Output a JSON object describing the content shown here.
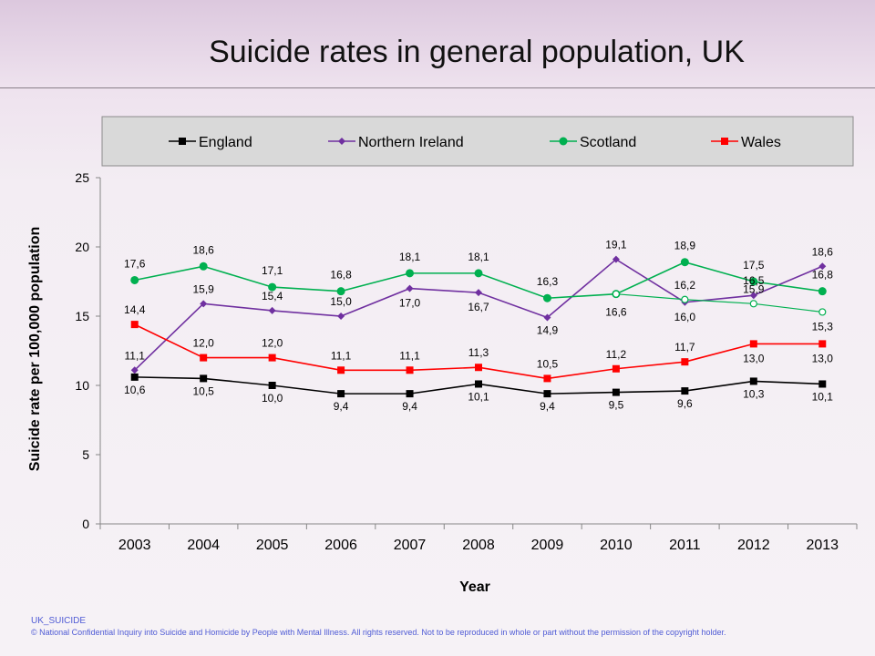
{
  "title": "Suicide rates in general population, UK",
  "footer": {
    "code": "UK_SUICIDE",
    "copyright": "© National Confidential Inquiry into Suicide and Homicide by People with Mental Illness. All rights reserved. Not to be reproduced in whole or part without the permission of the copyright holder."
  },
  "chart_data": {
    "type": "line",
    "xlabel": "Year",
    "ylabel": "Suicide rate per 100,000 population",
    "x": [
      "2003",
      "2004",
      "2005",
      "2006",
      "2007",
      "2008",
      "2009",
      "2010",
      "2011",
      "2012",
      "2013"
    ],
    "yticks": [
      "0",
      "5",
      "10",
      "15",
      "20",
      "25"
    ],
    "ylim": [
      0,
      25
    ],
    "grid": false,
    "legend_position": "top",
    "series": [
      {
        "name": "England",
        "color": "#000000",
        "marker": "square",
        "values": [
          10.6,
          10.5,
          10.0,
          9.4,
          9.4,
          10.1,
          9.4,
          9.5,
          9.6,
          10.3,
          10.1
        ],
        "labels": [
          "10,6",
          "10,5",
          "10,0",
          "9,4",
          "9,4",
          "10,1",
          "9,4",
          "9,5",
          "9,6",
          "10,3",
          "10,1"
        ]
      },
      {
        "name": "Northern Ireland",
        "color": "#7030a0",
        "marker": "diamond",
        "values": [
          11.1,
          15.9,
          15.4,
          15.0,
          17.0,
          16.7,
          14.9,
          19.1,
          16.0,
          16.5,
          18.6
        ],
        "labels": [
          "11,1",
          "15,9",
          "15,4",
          "15,0",
          "17,0",
          "16,7",
          "14,9",
          "19,1",
          "16,0",
          "16,5",
          "18,6"
        ]
      },
      {
        "name": "Scotland",
        "color": "#00b050",
        "marker": "circle",
        "values": [
          17.6,
          18.6,
          17.1,
          16.8,
          18.1,
          18.1,
          16.3,
          16.6,
          18.9,
          17.5,
          16.8
        ],
        "labels": [
          "17,6",
          "18,6",
          "17,1",
          "16,8",
          "18,1",
          "18,1",
          "16,3",
          "16,6",
          "18,9",
          "17,5",
          "16,8"
        ]
      },
      {
        "name": "Wales",
        "color": "#ff0000",
        "marker": "square",
        "values": [
          14.4,
          12.0,
          12.0,
          11.1,
          11.1,
          11.3,
          10.5,
          11.2,
          11.7,
          13.0,
          13.0
        ],
        "labels": [
          "14,4",
          "12,0",
          "12,0",
          "11,1",
          "11,1",
          "11,3",
          "10,5",
          "11,2",
          "11,7",
          "13,0",
          "13,0"
        ]
      },
      {
        "name": "",
        "color": "#00b050",
        "marker": "open-circle",
        "x": [
          "2010",
          "2011",
          "2012",
          "2013"
        ],
        "values": [
          16.6,
          16.2,
          15.9,
          15.3
        ],
        "labels": [
          "",
          "16,2",
          "15,9",
          "15,3"
        ]
      }
    ]
  }
}
